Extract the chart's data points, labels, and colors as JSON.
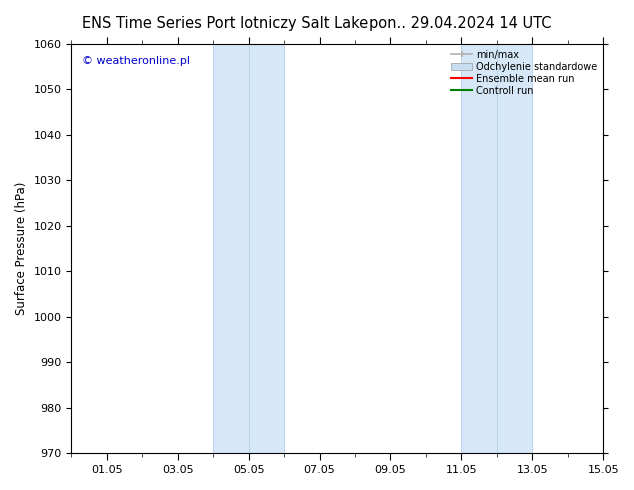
{
  "title_left": "ENS Time Series Port lotniczy Salt Lake",
  "title_right": "pon.. 29.04.2024 14 UTC",
  "ylabel": "Surface Pressure (hPa)",
  "watermark": "© weatheronline.pl",
  "watermark_color": "#0000cc",
  "ylim": [
    970,
    1060
  ],
  "yticks": [
    970,
    980,
    990,
    1000,
    1010,
    1020,
    1030,
    1040,
    1050,
    1060
  ],
  "xtick_labels": [
    "01.05",
    "03.05",
    "05.05",
    "07.05",
    "09.05",
    "11.05",
    "13.05",
    "15.05"
  ],
  "xtick_days": [
    1,
    3,
    5,
    7,
    9,
    11,
    13,
    15
  ],
  "xlim_days": [
    0,
    15
  ],
  "shaded_regions": [
    {
      "x_start": 4.0,
      "x_end": 5.0,
      "color": "#d6e8f7"
    },
    {
      "x_start": 5.0,
      "x_end": 6.0,
      "color": "#d6e8f7"
    },
    {
      "x_start": 11.0,
      "x_end": 12.0,
      "color": "#d6e8f7"
    },
    {
      "x_start": 12.0,
      "x_end": 13.0,
      "color": "#d6e8f7"
    }
  ],
  "shade_dividers": [
    5.0,
    12.0
  ],
  "legend_entries": [
    {
      "label": "min/max",
      "color": "#b0b0b0",
      "type": "line_with_caps"
    },
    {
      "label": "Odchylenie standardowe",
      "color": "#c8ddf0",
      "type": "bar"
    },
    {
      "label": "Ensemble mean run",
      "color": "#ff0000",
      "type": "line"
    },
    {
      "label": "Controll run",
      "color": "#008000",
      "type": "line"
    }
  ],
  "bg_color": "#ffffff",
  "tick_color": "#000000",
  "title_fontsize": 10.5,
  "axis_label_fontsize": 8.5,
  "tick_fontsize": 8
}
